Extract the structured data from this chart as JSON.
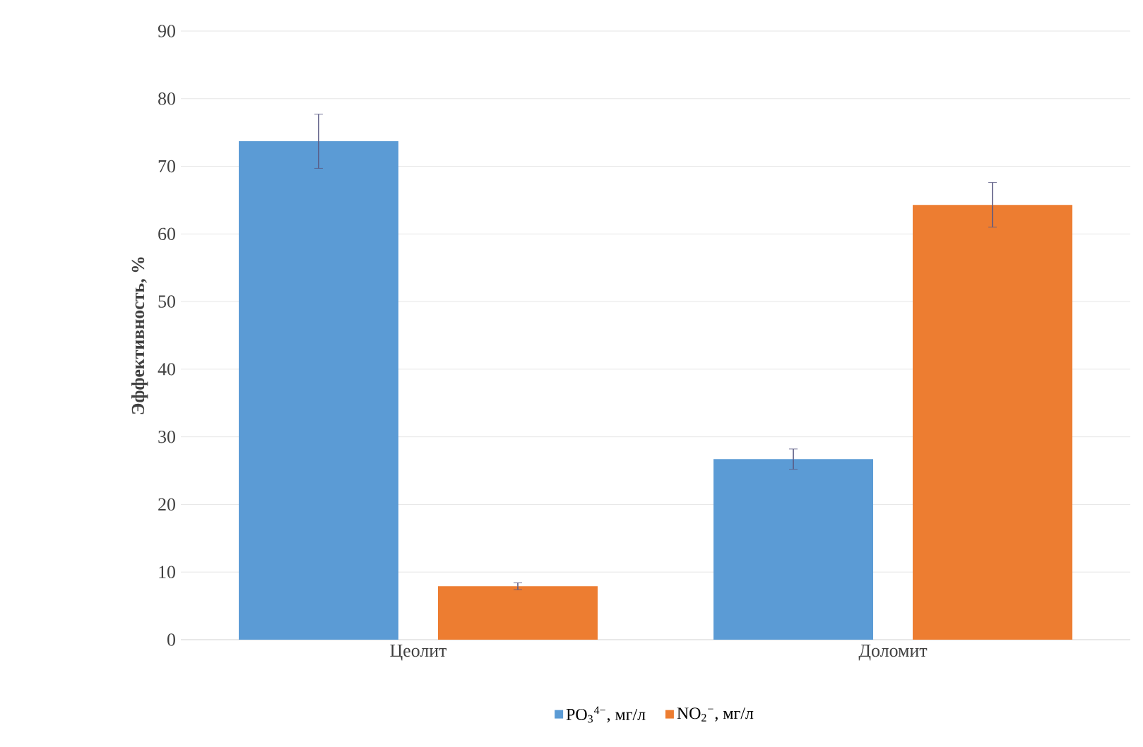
{
  "chart_data": {
    "type": "bar",
    "ylabel": "Эффективность, %",
    "categories": [
      "Цеолит",
      "Доломит"
    ],
    "series": [
      {
        "name": "PO$_{3}$$^{4−}$, мг/л",
        "color": "#5b9bd5",
        "values": [
          73.7,
          26.7
        ],
        "errors": [
          4,
          1.5
        ]
      },
      {
        "name": "NO$_{2}$$^{−}$, мг/л",
        "color": "#ed7d31",
        "values": [
          7.9,
          64.3
        ],
        "errors": [
          0.5,
          3.3
        ]
      }
    ],
    "ylim": [
      0,
      90
    ],
    "yticks": [
      0,
      10,
      20,
      30,
      40,
      50,
      60,
      70,
      80,
      90
    ],
    "grid": "y",
    "legend": "bottom"
  }
}
